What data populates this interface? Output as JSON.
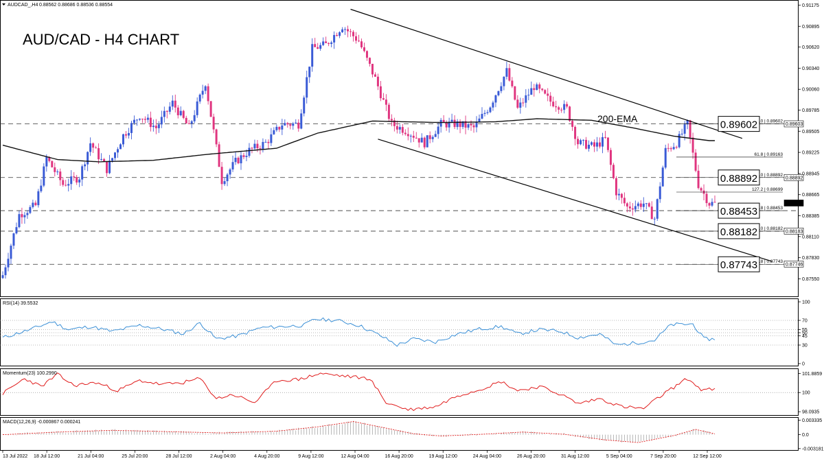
{
  "header": {
    "symbol": "AUDCAD_,H4",
    "ohlc": "0.88562 0.88686 0.88536 0.88554"
  },
  "colors": {
    "bull": "#3a5bd6",
    "bear": "#e0357f",
    "ema": "#111111",
    "rsi": "#3a8fd6",
    "momentum": "#e01b1b",
    "macd_signal": "#e01b1b",
    "macd_hist": "#9a9a9a",
    "gridline": "#333333"
  },
  "chart_data": [
    {
      "type": "candlestick",
      "title": "AUD/CAD - H4 CHART",
      "ema_label": "200-EMA",
      "price_ticks": [
        "0.91175",
        "0.90895",
        "0.90620",
        "0.90340",
        "0.90060",
        "0.89785",
        "0.89505",
        "0.89225",
        "0.88945",
        "0.88665",
        "0.88385",
        "0.88110",
        "0.87830",
        "0.87550"
      ],
      "ylim": [
        0.874,
        0.9117
      ],
      "tagged_prices": [
        "0.89603",
        "0.88892",
        "0.88554",
        "0.88183",
        "0.87746"
      ],
      "fib_labels": [
        "0.0 | 0.89602",
        "61.8 | 0.89163",
        "100.0 | 0.88892",
        "127.2 | 0.88699",
        "161.8 | 0.88453",
        "200.0 | 0.88182",
        "261.8 | 0.87743"
      ],
      "key_levels": [
        "0.89602",
        "0.88892",
        "0.88453",
        "0.88182",
        "0.87743"
      ],
      "x_labels": [
        "13 Jul 2022",
        "18 Jul 12:00",
        "21 Jul 04:00",
        "25 Jul 20:00",
        "28 Jul 12:00",
        "2 Aug 04:00",
        "4 Aug 20:00",
        "9 Aug 12:00",
        "12 Aug 04:00",
        "16 Aug 20:00",
        "19 Aug 12:00",
        "24 Aug 04:00",
        "26 Aug 20:00",
        "31 Aug 12:00",
        "5 Sep 04:00",
        "7 Sep 20:00",
        "12 Sep 12:00"
      ],
      "anchors": [
        {
          "i": 0,
          "v": 0.876
        },
        {
          "i": 6,
          "v": 0.884
        },
        {
          "i": 12,
          "v": 0.8852
        },
        {
          "i": 16,
          "v": 0.8915
        },
        {
          "i": 22,
          "v": 0.888
        },
        {
          "i": 28,
          "v": 0.889
        },
        {
          "i": 32,
          "v": 0.8935
        },
        {
          "i": 38,
          "v": 0.89
        },
        {
          "i": 44,
          "v": 0.8945
        },
        {
          "i": 50,
          "v": 0.8972
        },
        {
          "i": 56,
          "v": 0.8955
        },
        {
          "i": 62,
          "v": 0.8988
        },
        {
          "i": 68,
          "v": 0.8955
        },
        {
          "i": 74,
          "v": 0.9015
        },
        {
          "i": 80,
          "v": 0.8885
        },
        {
          "i": 85,
          "v": 0.891
        },
        {
          "i": 90,
          "v": 0.8925
        },
        {
          "i": 96,
          "v": 0.8935
        },
        {
          "i": 102,
          "v": 0.896
        },
        {
          "i": 108,
          "v": 0.896
        },
        {
          "i": 113,
          "v": 0.906
        },
        {
          "i": 118,
          "v": 0.9065
        },
        {
          "i": 124,
          "v": 0.909
        },
        {
          "i": 130,
          "v": 0.907
        },
        {
          "i": 136,
          "v": 0.902
        },
        {
          "i": 142,
          "v": 0.896
        },
        {
          "i": 148,
          "v": 0.895
        },
        {
          "i": 154,
          "v": 0.8935
        },
        {
          "i": 160,
          "v": 0.896
        },
        {
          "i": 166,
          "v": 0.896
        },
        {
          "i": 172,
          "v": 0.8955
        },
        {
          "i": 178,
          "v": 0.8985
        },
        {
          "i": 184,
          "v": 0.903
        },
        {
          "i": 188,
          "v": 0.898
        },
        {
          "i": 194,
          "v": 0.901
        },
        {
          "i": 200,
          "v": 0.899
        },
        {
          "i": 206,
          "v": 0.898
        },
        {
          "i": 210,
          "v": 0.8935
        },
        {
          "i": 216,
          "v": 0.893
        },
        {
          "i": 220,
          "v": 0.894
        },
        {
          "i": 224,
          "v": 0.887
        },
        {
          "i": 228,
          "v": 0.885
        },
        {
          "i": 234,
          "v": 0.8855
        },
        {
          "i": 238,
          "v": 0.8835
        },
        {
          "i": 242,
          "v": 0.8925
        },
        {
          "i": 246,
          "v": 0.8935
        },
        {
          "i": 250,
          "v": 0.896
        },
        {
          "i": 254,
          "v": 0.888
        },
        {
          "i": 258,
          "v": 0.8855
        }
      ],
      "ema_points": [
        {
          "i": 0,
          "v": 0.8932
        },
        {
          "i": 20,
          "v": 0.8913
        },
        {
          "i": 35,
          "v": 0.891
        },
        {
          "i": 55,
          "v": 0.8912
        },
        {
          "i": 75,
          "v": 0.892
        },
        {
          "i": 100,
          "v": 0.8928
        },
        {
          "i": 115,
          "v": 0.8948
        },
        {
          "i": 135,
          "v": 0.8964
        },
        {
          "i": 160,
          "v": 0.8962
        },
        {
          "i": 180,
          "v": 0.8963
        },
        {
          "i": 195,
          "v": 0.8967
        },
        {
          "i": 215,
          "v": 0.8965
        },
        {
          "i": 230,
          "v": 0.8955
        },
        {
          "i": 245,
          "v": 0.8944
        },
        {
          "i": 258,
          "v": 0.8938
        }
      ],
      "channel_upper": [
        {
          "i": 127,
          "v": 0.9112
        },
        {
          "i": 270,
          "v": 0.8941
        }
      ],
      "channel_lower": [
        {
          "i": 137,
          "v": 0.894
        },
        {
          "i": 281,
          "v": 0.8778
        }
      ]
    },
    {
      "type": "line",
      "label": "RSI(14) 39.5532",
      "y_ticks": [
        "100",
        "70",
        "55",
        "50",
        "45",
        "30",
        "0"
      ],
      "levels": [
        70,
        55,
        50,
        45,
        30
      ],
      "ylim": [
        0,
        100
      ],
      "anchors": [
        {
          "i": 0,
          "v": 42
        },
        {
          "i": 10,
          "v": 55
        },
        {
          "i": 18,
          "v": 68
        },
        {
          "i": 24,
          "v": 55
        },
        {
          "i": 32,
          "v": 60
        },
        {
          "i": 40,
          "v": 52
        },
        {
          "i": 50,
          "v": 62
        },
        {
          "i": 58,
          "v": 56
        },
        {
          "i": 66,
          "v": 48
        },
        {
          "i": 72,
          "v": 66
        },
        {
          "i": 78,
          "v": 40
        },
        {
          "i": 86,
          "v": 45
        },
        {
          "i": 94,
          "v": 58
        },
        {
          "i": 102,
          "v": 60
        },
        {
          "i": 110,
          "v": 62
        },
        {
          "i": 114,
          "v": 72
        },
        {
          "i": 122,
          "v": 70
        },
        {
          "i": 130,
          "v": 62
        },
        {
          "i": 138,
          "v": 45
        },
        {
          "i": 144,
          "v": 30
        },
        {
          "i": 150,
          "v": 40
        },
        {
          "i": 158,
          "v": 35
        },
        {
          "i": 166,
          "v": 48
        },
        {
          "i": 174,
          "v": 56
        },
        {
          "i": 182,
          "v": 60
        },
        {
          "i": 188,
          "v": 48
        },
        {
          "i": 196,
          "v": 55
        },
        {
          "i": 204,
          "v": 52
        },
        {
          "i": 210,
          "v": 42
        },
        {
          "i": 218,
          "v": 48
        },
        {
          "i": 224,
          "v": 30
        },
        {
          "i": 232,
          "v": 34
        },
        {
          "i": 238,
          "v": 38
        },
        {
          "i": 244,
          "v": 63
        },
        {
          "i": 252,
          "v": 64
        },
        {
          "i": 256,
          "v": 40
        },
        {
          "i": 260,
          "v": 39.5
        }
      ]
    },
    {
      "type": "line",
      "label": "Momentum(23) 100.2990",
      "y_ticks": [
        "101.8859",
        "100",
        "98.0935"
      ],
      "ref_level": 100,
      "ylim": [
        97.9,
        102.2
      ],
      "anchors": [
        {
          "i": 0,
          "v": 99.9
        },
        {
          "i": 8,
          "v": 101.4
        },
        {
          "i": 14,
          "v": 100.6
        },
        {
          "i": 20,
          "v": 101.8
        },
        {
          "i": 26,
          "v": 100.7
        },
        {
          "i": 34,
          "v": 101.0
        },
        {
          "i": 42,
          "v": 100.2
        },
        {
          "i": 50,
          "v": 101.2
        },
        {
          "i": 58,
          "v": 100.8
        },
        {
          "i": 66,
          "v": 101.0
        },
        {
          "i": 72,
          "v": 101.4
        },
        {
          "i": 78,
          "v": 99.4
        },
        {
          "i": 84,
          "v": 99.8
        },
        {
          "i": 92,
          "v": 99.0
        },
        {
          "i": 100,
          "v": 101.2
        },
        {
          "i": 108,
          "v": 101.3
        },
        {
          "i": 116,
          "v": 101.9
        },
        {
          "i": 126,
          "v": 101.6
        },
        {
          "i": 134,
          "v": 101.4
        },
        {
          "i": 140,
          "v": 99.0
        },
        {
          "i": 148,
          "v": 98.3
        },
        {
          "i": 158,
          "v": 98.6
        },
        {
          "i": 166,
          "v": 99.7
        },
        {
          "i": 174,
          "v": 100.3
        },
        {
          "i": 182,
          "v": 101.1
        },
        {
          "i": 188,
          "v": 100.2
        },
        {
          "i": 196,
          "v": 100.6
        },
        {
          "i": 204,
          "v": 99.8
        },
        {
          "i": 210,
          "v": 98.9
        },
        {
          "i": 218,
          "v": 99.4
        },
        {
          "i": 226,
          "v": 98.6
        },
        {
          "i": 234,
          "v": 98.4
        },
        {
          "i": 242,
          "v": 100.0
        },
        {
          "i": 250,
          "v": 101.4
        },
        {
          "i": 255,
          "v": 100.3
        },
        {
          "i": 260,
          "v": 100.3
        }
      ]
    },
    {
      "type": "bar",
      "label": "MACD(12,26,9) -0.000867 0.000241",
      "y_ticks": [
        "0.003335",
        "0.0",
        "-0.003181"
      ],
      "ylim": [
        -0.0032,
        0.0034
      ],
      "signal_anchors": [
        {
          "i": 0,
          "v": 0.0
        },
        {
          "i": 20,
          "v": 0.0006
        },
        {
          "i": 40,
          "v": 0.001
        },
        {
          "i": 60,
          "v": 0.0007
        },
        {
          "i": 80,
          "v": 0.0004
        },
        {
          "i": 100,
          "v": 0.0008
        },
        {
          "i": 115,
          "v": 0.0018
        },
        {
          "i": 128,
          "v": 0.003
        },
        {
          "i": 140,
          "v": 0.0015
        },
        {
          "i": 150,
          "v": 0.0002
        },
        {
          "i": 160,
          "v": -0.0003
        },
        {
          "i": 175,
          "v": 0.0001
        },
        {
          "i": 190,
          "v": 0.0006
        },
        {
          "i": 205,
          "v": 0.0001
        },
        {
          "i": 220,
          "v": -0.0012
        },
        {
          "i": 232,
          "v": -0.0018
        },
        {
          "i": 245,
          "v": -0.0002
        },
        {
          "i": 253,
          "v": 0.0012
        },
        {
          "i": 260,
          "v": 0.0002
        }
      ]
    }
  ]
}
